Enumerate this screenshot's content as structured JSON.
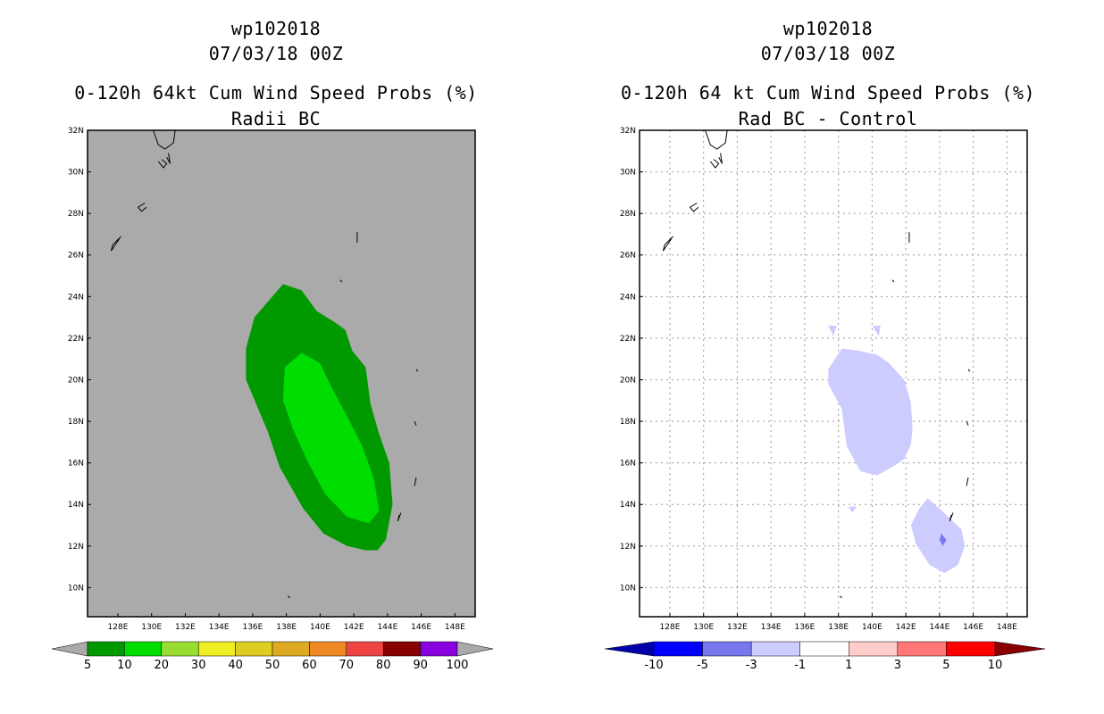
{
  "chart_data": [
    {
      "type": "contour-map",
      "storm_id": "wp102018",
      "date": "07/03/18 00Z",
      "title": "0-120h 64kt Cum Wind Speed Probs (%)",
      "subtitle": "Radii BC",
      "lon_range": [
        126.2,
        149.2
      ],
      "lat_range": [
        8.6,
        32.0
      ],
      "lon_ticks": [
        "128E",
        "130E",
        "132E",
        "134E",
        "136E",
        "138E",
        "140E",
        "142E",
        "144E",
        "146E",
        "148E"
      ],
      "lat_ticks": [
        "10N",
        "12N",
        "14N",
        "16N",
        "18N",
        "20N",
        "22N",
        "24N",
        "26N",
        "28N",
        "30N",
        "32N"
      ],
      "background": "#aaaaaa",
      "colorbar_labels": [
        "5",
        "10",
        "20",
        "30",
        "40",
        "50",
        "60",
        "70",
        "80",
        "90",
        "100"
      ],
      "colorbar_colors": [
        "#009900",
        "#00dd00",
        "#99dd33",
        "#eeee22",
        "#ddcc22",
        "#ddaa22",
        "#ee8822",
        "#ee4444",
        "#880000",
        "#8800dd"
      ],
      "contours": [
        {
          "level": "5-10",
          "color": "#009900",
          "polygon": [
            [
              137.8,
              24.6
            ],
            [
              138.9,
              24.3
            ],
            [
              139.8,
              23.3
            ],
            [
              140.8,
              22.8
            ],
            [
              141.5,
              22.4
            ],
            [
              141.9,
              21.4
            ],
            [
              142.7,
              20.6
            ],
            [
              143.0,
              18.8
            ],
            [
              143.5,
              17.4
            ],
            [
              144.1,
              16.0
            ],
            [
              144.3,
              14.0
            ],
            [
              143.9,
              12.3
            ],
            [
              143.4,
              11.8
            ],
            [
              142.7,
              11.8
            ],
            [
              141.6,
              12.0
            ],
            [
              140.2,
              12.6
            ],
            [
              139.0,
              13.8
            ],
            [
              137.6,
              15.8
            ],
            [
              136.9,
              17.5
            ],
            [
              135.6,
              20.0
            ],
            [
              135.6,
              21.5
            ],
            [
              136.1,
              23.0
            ]
          ]
        },
        {
          "level": "10-20",
          "color": "#00dd00",
          "polygon": [
            [
              138.9,
              21.3
            ],
            [
              140.0,
              20.8
            ],
            [
              140.7,
              19.6
            ],
            [
              141.5,
              18.4
            ],
            [
              142.5,
              16.8
            ],
            [
              143.2,
              15.2
            ],
            [
              143.5,
              13.7
            ],
            [
              142.9,
              13.1
            ],
            [
              141.6,
              13.4
            ],
            [
              140.3,
              14.5
            ],
            [
              139.3,
              16.0
            ],
            [
              138.4,
              17.6
            ],
            [
              137.8,
              19.0
            ],
            [
              137.9,
              20.6
            ]
          ]
        }
      ]
    },
    {
      "type": "contour-map",
      "storm_id": "wp102018",
      "date": "07/03/18 00Z",
      "title": "0-120h 64 kt Cum Wind Speed Probs (%)",
      "subtitle": "Rad BC - Control",
      "lon_range": [
        126.2,
        149.2
      ],
      "lat_range": [
        8.6,
        32.0
      ],
      "lon_ticks": [
        "128E",
        "130E",
        "132E",
        "134E",
        "136E",
        "138E",
        "140E",
        "142E",
        "144E",
        "146E",
        "148E"
      ],
      "lat_ticks": [
        "10N",
        "12N",
        "14N",
        "16N",
        "18N",
        "20N",
        "22N",
        "24N",
        "26N",
        "28N",
        "30N",
        "32N"
      ],
      "background": "#ffffff",
      "gridlines": true,
      "colorbar_labels": [
        "-10",
        "-5",
        "-3",
        "-1",
        "1",
        "3",
        "5",
        "10"
      ],
      "colorbar_colors": [
        "#0000aa",
        "#0000ff",
        "#7777ee",
        "#ccccff",
        "#ffffff",
        "#ffcccc",
        "#ff7777",
        "#ff0000",
        "#880000"
      ],
      "contours": [
        {
          "level": "-3 to -1",
          "color": "#ccccff",
          "polygon": [
            [
              138.2,
              21.5
            ],
            [
              139.2,
              21.4
            ],
            [
              140.3,
              21.2
            ],
            [
              141.0,
              20.8
            ],
            [
              141.9,
              20.0
            ],
            [
              142.3,
              18.9
            ],
            [
              142.4,
              17.6
            ],
            [
              142.3,
              16.9
            ],
            [
              141.9,
              16.2
            ],
            [
              141.2,
              15.8
            ],
            [
              140.3,
              15.4
            ],
            [
              139.3,
              15.6
            ],
            [
              138.5,
              16.8
            ],
            [
              138.2,
              18.6
            ],
            [
              137.4,
              19.8
            ],
            [
              137.4,
              20.5
            ]
          ]
        },
        {
          "level": "-3 to -1",
          "color": "#ccccff",
          "polygon": [
            [
              143.3,
              14.3
            ],
            [
              144.4,
              13.5
            ],
            [
              145.3,
              12.8
            ],
            [
              145.5,
              12.0
            ],
            [
              145.1,
              11.1
            ],
            [
              144.3,
              10.7
            ],
            [
              143.4,
              11.1
            ],
            [
              142.6,
              12.1
            ],
            [
              142.3,
              13.0
            ],
            [
              142.8,
              13.8
            ]
          ]
        },
        {
          "level": "-3 to -1",
          "color": "#ccccff",
          "polygon": [
            [
              137.4,
              22.6
            ],
            [
              137.7,
              22.1
            ],
            [
              137.9,
              22.6
            ]
          ]
        },
        {
          "level": "-3 to -1",
          "color": "#ccccff",
          "polygon": [
            [
              140.0,
              22.6
            ],
            [
              140.4,
              22.1
            ],
            [
              140.5,
              22.6
            ]
          ]
        },
        {
          "level": "-3 to -1",
          "color": "#ccccff",
          "polygon": [
            [
              138.6,
              13.9
            ],
            [
              138.8,
              13.6
            ],
            [
              139.1,
              13.9
            ]
          ]
        },
        {
          "level": "-5 to -3",
          "color": "#7777ee",
          "polygon": [
            [
              144.1,
              12.6
            ],
            [
              144.4,
              12.3
            ],
            [
              144.2,
              12.0
            ],
            [
              144.0,
              12.3
            ]
          ]
        }
      ]
    }
  ]
}
